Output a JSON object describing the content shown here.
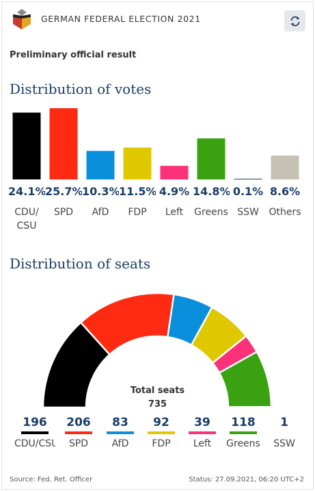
{
  "header": {
    "title": "GERMAN FEDERAL ELECTION 2021",
    "logo_icon": "ballot-box-icon",
    "refresh_icon": "refresh-icon"
  },
  "status_line": "Preliminary official result",
  "votes_section": {
    "title": "Distribution of votes"
  },
  "seats_section": {
    "title": "Distribution of seats",
    "total_label": "Total seats",
    "total_value": "735"
  },
  "footer": {
    "source": "Source: Fed. Ret. Officer",
    "status": "Status: 27.09.2021, 06:20 UTC+2"
  },
  "chart_data": [
    {
      "type": "bar",
      "title": "Distribution of votes",
      "categories": [
        "CDU/\nCSU",
        "SPD",
        "AfD",
        "FDP",
        "Left",
        "Greens",
        "SSW",
        "Others"
      ],
      "labels": [
        "24.1%",
        "25.7%",
        "10.3%",
        "11.5%",
        "4.9%",
        "14.8%",
        "0.1%",
        "8.6%"
      ],
      "values": [
        24.1,
        25.7,
        10.3,
        11.5,
        4.9,
        14.8,
        0.1,
        8.6
      ],
      "colors": [
        "#000000",
        "#ff2a12",
        "#0a8fdc",
        "#dfc800",
        "#fb3278",
        "#3aa211",
        "#1a3d66",
        "#c5c2b4"
      ],
      "ylim": [
        0,
        25.7
      ]
    },
    {
      "type": "pie",
      "title": "Distribution of seats",
      "categories": [
        "CDU/CSU",
        "SPD",
        "AfD",
        "FDP",
        "Left",
        "Greens",
        "SSW"
      ],
      "values": [
        196,
        206,
        83,
        92,
        39,
        118,
        1
      ],
      "colors": [
        "#000000",
        "#ff2a12",
        "#0a8fdc",
        "#dfc800",
        "#fb3278",
        "#3aa211",
        "#1a3d66"
      ]
    }
  ]
}
